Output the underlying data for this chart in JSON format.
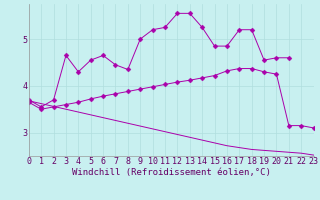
{
  "xlabel": "Windchill (Refroidissement éolien,°C)",
  "bg_color": "#c8f0f0",
  "line_color": "#aa00aa",
  "grid_color": "#b0dede",
  "x_values": [
    0,
    1,
    2,
    3,
    4,
    5,
    6,
    7,
    8,
    9,
    10,
    11,
    12,
    13,
    14,
    15,
    16,
    17,
    18,
    19,
    20,
    21,
    22,
    23
  ],
  "series1": [
    3.7,
    3.55,
    3.7,
    4.65,
    4.3,
    4.55,
    4.65,
    4.45,
    4.35,
    5.0,
    5.2,
    5.25,
    5.55,
    5.55,
    5.25,
    4.85,
    4.85,
    5.2,
    5.2,
    4.55,
    4.6,
    4.6,
    null,
    null
  ],
  "series3": [
    3.65,
    3.5,
    3.55,
    3.6,
    3.65,
    3.72,
    3.78,
    3.83,
    3.88,
    3.93,
    3.98,
    4.03,
    4.08,
    4.12,
    4.17,
    4.22,
    4.32,
    4.37,
    4.37,
    4.3,
    4.25,
    3.15,
    3.15,
    3.1
  ],
  "series4": [
    3.68,
    3.62,
    3.56,
    3.5,
    3.44,
    3.38,
    3.32,
    3.26,
    3.2,
    3.14,
    3.08,
    3.02,
    2.96,
    2.9,
    2.84,
    2.78,
    2.72,
    2.68,
    2.64,
    2.62,
    2.6,
    2.58,
    2.56,
    2.52
  ],
  "ylim": [
    2.5,
    5.75
  ],
  "xlim": [
    0,
    23
  ],
  "yticks": [
    3,
    4,
    5
  ],
  "xticks": [
    0,
    1,
    2,
    3,
    4,
    5,
    6,
    7,
    8,
    9,
    10,
    11,
    12,
    13,
    14,
    15,
    16,
    17,
    18,
    19,
    20,
    21,
    22,
    23
  ],
  "xlabel_fontsize": 6.5,
  "tick_fontsize": 6,
  "markersize": 2.5
}
